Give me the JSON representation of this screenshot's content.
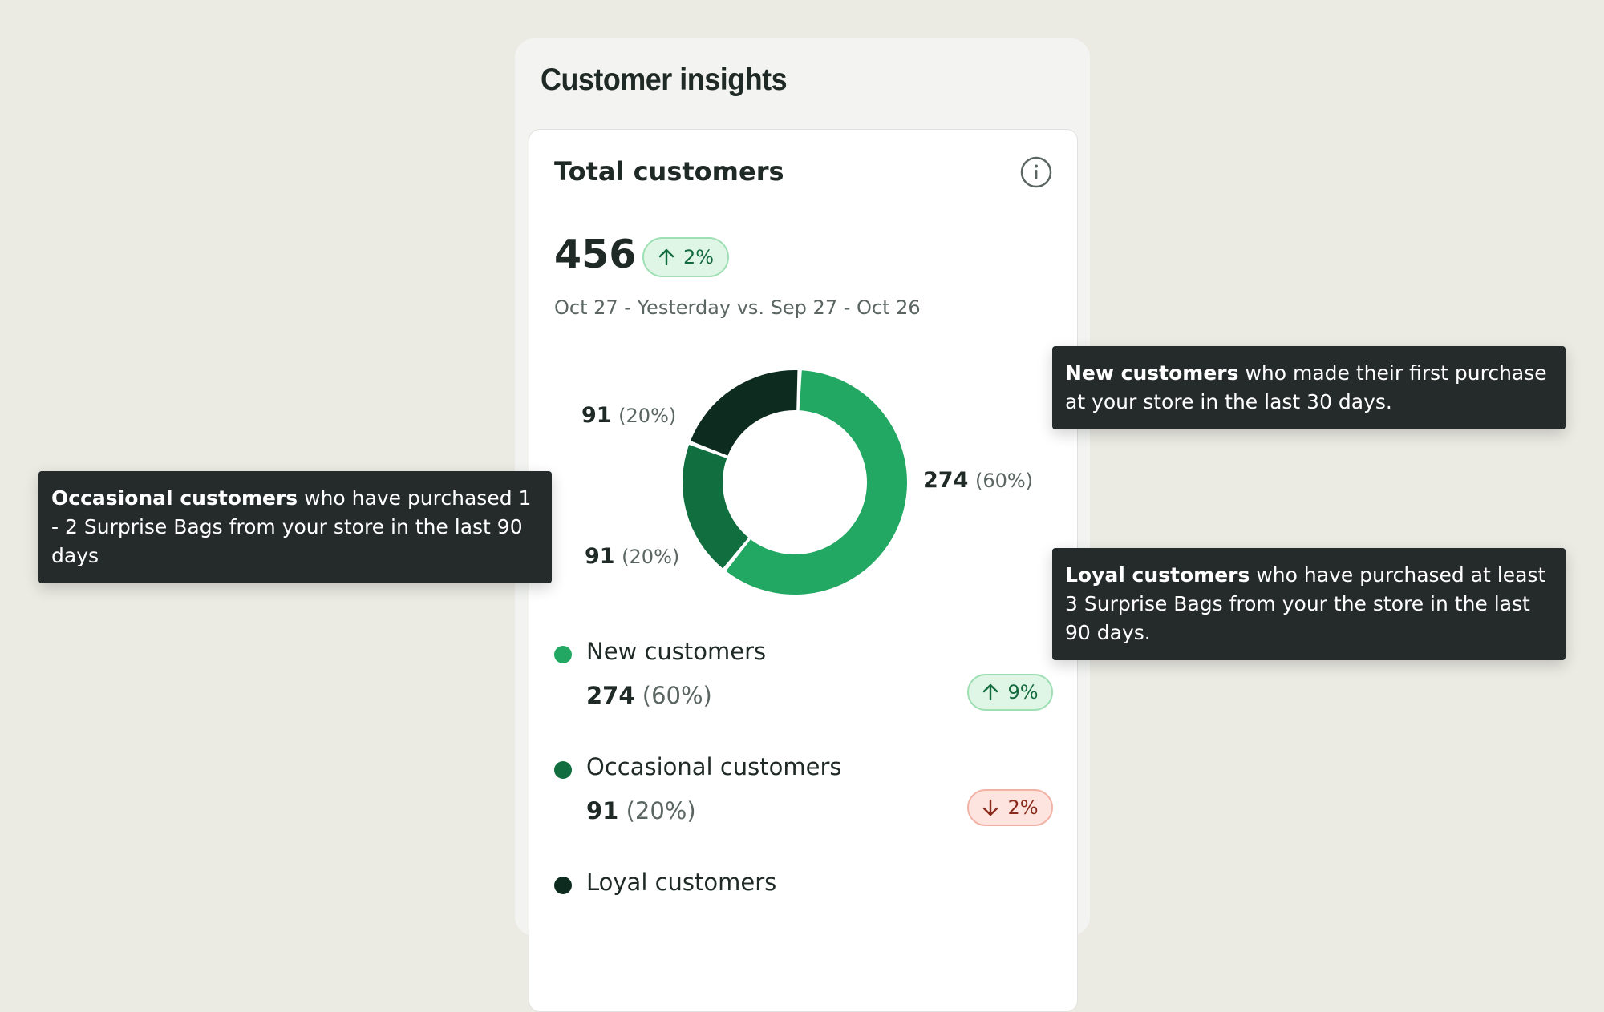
{
  "panel": {
    "title": "Customer insights"
  },
  "card": {
    "title": "Total customers",
    "total": "456",
    "total_change": "2%",
    "date_range": "Oct 27 - Yesterday vs. Sep 27 - Oct 26"
  },
  "chart_data": {
    "type": "pie",
    "donut": true,
    "categories": [
      "New customers",
      "Occasional customers",
      "Loyal customers"
    ],
    "values": [
      274,
      91,
      91
    ],
    "percent_labels": [
      "(60%)",
      "(20%)",
      "(20%)"
    ],
    "colors": [
      "#22a862",
      "#116e3f",
      "#0d2c1f"
    ],
    "labels": [
      {
        "value": "274",
        "pct": "(60%)"
      },
      {
        "value": "91",
        "pct": "(20%)"
      },
      {
        "value": "91",
        "pct": "(20%)"
      }
    ]
  },
  "legend": [
    {
      "name": "New customers",
      "value": "274",
      "pct": "(60%)",
      "change": "9%",
      "direction": "up",
      "color": "#22a862"
    },
    {
      "name": "Occasional customers",
      "value": "91",
      "pct": "(20%)",
      "change": "2%",
      "direction": "down",
      "color": "#116e3f"
    },
    {
      "name": "Loyal customers",
      "color": "#0d2c1f"
    }
  ],
  "tooltips": {
    "new": {
      "bold": "New customers",
      "text": " who made their first purchase at your store in the last 30 days."
    },
    "occasional": {
      "bold": "Occasional customers",
      "text": " who have purchased 1 - 2 Surprise Bags from your store in the last 90 days"
    },
    "loyal": {
      "bold": "Loyal customers",
      "text": " who have purchased at least 3 Surprise Bags from your the store in the last 90 days."
    }
  },
  "icons": {
    "info": "info-icon",
    "up": "arrow-up-icon",
    "down": "arrow-down-icon"
  }
}
